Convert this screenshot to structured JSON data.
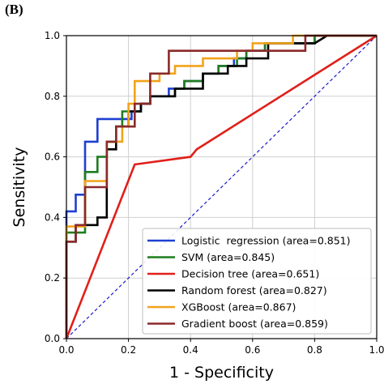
{
  "panel_label": "(B)",
  "chart_data": {
    "type": "line",
    "title": "",
    "xlabel": "1 - Specificity",
    "ylabel": "Sensitivity",
    "xlim": [
      0,
      1
    ],
    "ylim": [
      0,
      1
    ],
    "xticks": [
      "0.0",
      "0.2",
      "0.4",
      "0.6",
      "0.8",
      "1.0"
    ],
    "yticks": [
      "0.0",
      "0.2",
      "0.4",
      "0.6",
      "0.8",
      "1.0"
    ],
    "grid": true,
    "legend_position": "lower-right",
    "diagonal": {
      "x": [
        0,
        1
      ],
      "y": [
        0,
        1
      ],
      "color": "#1a1acc",
      "style": "dashed"
    },
    "series": [
      {
        "name": "Logistic  regression (area=0.851)",
        "color": "#1f3fd1",
        "x": [
          0.0,
          0.0,
          0.03,
          0.03,
          0.06,
          0.06,
          0.1,
          0.1,
          0.21,
          0.21,
          0.24,
          0.24,
          0.27,
          0.27,
          0.33,
          0.33,
          0.38,
          0.38,
          0.44,
          0.44,
          0.49,
          0.49,
          0.54,
          0.54,
          0.58,
          0.58,
          0.64,
          0.64,
          0.67,
          0.67,
          0.8,
          0.8,
          1.0
        ],
        "y": [
          0.0,
          0.42,
          0.42,
          0.475,
          0.475,
          0.65,
          0.65,
          0.725,
          0.725,
          0.75,
          0.75,
          0.775,
          0.775,
          0.8,
          0.8,
          0.825,
          0.825,
          0.85,
          0.85,
          0.875,
          0.875,
          0.9,
          0.9,
          0.925,
          0.925,
          0.95,
          0.95,
          0.975,
          0.975,
          0.975,
          0.975,
          1.0,
          1.0
        ]
      },
      {
        "name": "SVM (area=0.845)",
        "color": "#1e7d1e",
        "x": [
          0.0,
          0.0,
          0.06,
          0.06,
          0.1,
          0.1,
          0.13,
          0.13,
          0.16,
          0.16,
          0.18,
          0.18,
          0.24,
          0.24,
          0.27,
          0.27,
          0.35,
          0.35,
          0.38,
          0.38,
          0.44,
          0.44,
          0.49,
          0.49,
          0.55,
          0.55,
          0.58,
          0.58,
          0.64,
          0.64,
          0.68,
          0.68,
          0.8,
          0.8,
          1.0
        ],
        "y": [
          0.0,
          0.35,
          0.35,
          0.55,
          0.55,
          0.6,
          0.6,
          0.65,
          0.65,
          0.7,
          0.7,
          0.75,
          0.75,
          0.775,
          0.775,
          0.8,
          0.8,
          0.825,
          0.825,
          0.85,
          0.85,
          0.875,
          0.875,
          0.9,
          0.9,
          0.925,
          0.925,
          0.95,
          0.95,
          0.975,
          0.975,
          0.975,
          0.975,
          1.0,
          1.0
        ]
      },
      {
        "name": "Decision tree (area=0.651)",
        "color": "#e0201a",
        "x": [
          0.0,
          0.22,
          0.4,
          0.42,
          1.0
        ],
        "y": [
          0.0,
          0.575,
          0.6,
          0.625,
          1.0
        ]
      },
      {
        "name": "Random forest (area=0.827)",
        "color": "#000000",
        "x": [
          0.0,
          0.0,
          0.03,
          0.03,
          0.1,
          0.1,
          0.13,
          0.13,
          0.16,
          0.16,
          0.2,
          0.2,
          0.24,
          0.24,
          0.27,
          0.27,
          0.35,
          0.35,
          0.44,
          0.44,
          0.52,
          0.52,
          0.58,
          0.58,
          0.65,
          0.65,
          0.8,
          0.8,
          0.84,
          1.0
        ],
        "y": [
          0.0,
          0.32,
          0.32,
          0.375,
          0.375,
          0.4,
          0.4,
          0.625,
          0.625,
          0.7,
          0.7,
          0.75,
          0.75,
          0.775,
          0.775,
          0.8,
          0.8,
          0.825,
          0.825,
          0.875,
          0.875,
          0.9,
          0.9,
          0.925,
          0.925,
          0.975,
          0.975,
          0.975,
          1.0,
          1.0
        ]
      },
      {
        "name": "XGBoost (area=0.867)",
        "color": "#f2a31a",
        "x": [
          0.0,
          0.0,
          0.06,
          0.06,
          0.13,
          0.13,
          0.18,
          0.18,
          0.2,
          0.2,
          0.22,
          0.22,
          0.3,
          0.3,
          0.35,
          0.35,
          0.44,
          0.44,
          0.55,
          0.55,
          0.6,
          0.6,
          0.73,
          0.73,
          0.82,
          0.82,
          1.0
        ],
        "y": [
          0.0,
          0.37,
          0.37,
          0.52,
          0.52,
          0.65,
          0.65,
          0.7,
          0.7,
          0.775,
          0.775,
          0.85,
          0.85,
          0.875,
          0.875,
          0.9,
          0.9,
          0.925,
          0.925,
          0.95,
          0.95,
          0.975,
          0.975,
          1.0,
          1.0,
          1.0,
          1.0
        ]
      },
      {
        "name": "Gradient boost (area=0.859)",
        "color": "#8b2a2a",
        "x": [
          0.0,
          0.0,
          0.03,
          0.03,
          0.06,
          0.06,
          0.13,
          0.13,
          0.16,
          0.16,
          0.22,
          0.22,
          0.27,
          0.27,
          0.33,
          0.33,
          0.77,
          0.77,
          1.0
        ],
        "y": [
          0.0,
          0.32,
          0.32,
          0.375,
          0.375,
          0.5,
          0.5,
          0.65,
          0.65,
          0.7,
          0.7,
          0.775,
          0.775,
          0.875,
          0.875,
          0.95,
          0.95,
          1.0,
          1.0
        ]
      }
    ]
  }
}
